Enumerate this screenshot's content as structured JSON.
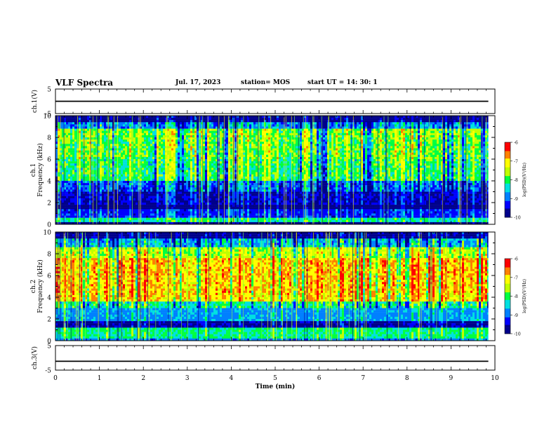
{
  "header": {
    "title": "VLF Spectra",
    "date": "Jul. 17, 2023",
    "station": "station= MOS",
    "start": "start UT =  14: 30: 1"
  },
  "colors": {
    "colormap": [
      "#00008b",
      "#0000ff",
      "#0080ff",
      "#00e0e0",
      "#00ff40",
      "#c0ff00",
      "#ffff00",
      "#ff8000",
      "#ff0000",
      "#ffffff"
    ],
    "trace": "#000000"
  },
  "chart_data": [
    {
      "type": "line",
      "panel": "ch1-waveform",
      "ylabel": "ch.1(V)",
      "ylim": [
        -5,
        5
      ],
      "yticks": [
        "5",
        "-5"
      ],
      "series": [
        {
          "values": [
            0,
            0
          ]
        }
      ],
      "x": [
        0,
        9.85
      ]
    },
    {
      "type": "heatmap",
      "panel": "ch1-spectrogram",
      "ylabel": "ch.1 Frequency (kHz)",
      "ylim": [
        0,
        10
      ],
      "yticks": [
        "0",
        "2",
        "4",
        "6",
        "8",
        "10"
      ],
      "xlim": [
        0,
        10
      ],
      "data_end_min": 9.85,
      "colorbar": {
        "label": "log(PSD)(V²/Hz)",
        "range": [
          -10,
          -6
        ],
        "ticks": [
          "-6",
          "-7",
          "-8",
          "-9",
          "-10"
        ]
      },
      "bands": [
        {
          "from": 0.0,
          "to": 0.3,
          "level": -10
        },
        {
          "from": 0.3,
          "to": 0.6,
          "level": -8.3
        },
        {
          "from": 0.6,
          "to": 1.4,
          "level": -9.3
        },
        {
          "from": 1.4,
          "to": 1.7,
          "level": -10
        },
        {
          "from": 1.7,
          "to": 3.0,
          "level": -9.6
        },
        {
          "from": 3.0,
          "to": 4.0,
          "level": -9.1
        },
        {
          "from": 4.0,
          "to": 6.0,
          "level": -8.1
        },
        {
          "from": 6.0,
          "to": 8.0,
          "level": -7.9
        },
        {
          "from": 8.0,
          "to": 8.9,
          "level": -7.8
        },
        {
          "from": 8.9,
          "to": 9.5,
          "level": -8.9
        },
        {
          "from": 9.5,
          "to": 10.0,
          "level": -10
        }
      ]
    },
    {
      "type": "heatmap",
      "panel": "ch2-spectrogram",
      "ylabel": "ch.2 Frequency (kHz)",
      "ylim": [
        0,
        10
      ],
      "yticks": [
        "0",
        "2",
        "4",
        "6",
        "8",
        "10"
      ],
      "xlim": [
        0,
        10
      ],
      "data_end_min": 9.85,
      "colorbar": {
        "label": "log(PSD)(V²/Hz)",
        "range": [
          -10,
          -6
        ],
        "ticks": [
          "-6",
          "-7",
          "-8",
          "-9",
          "-10"
        ]
      },
      "bands": [
        {
          "from": 0.0,
          "to": 0.3,
          "level": -8.9
        },
        {
          "from": 0.3,
          "to": 1.2,
          "level": -8.2
        },
        {
          "from": 1.2,
          "to": 1.8,
          "level": -9.7
        },
        {
          "from": 1.8,
          "to": 3.0,
          "level": -8.8
        },
        {
          "from": 3.0,
          "to": 3.6,
          "level": -8.2
        },
        {
          "from": 3.6,
          "to": 4.5,
          "level": -7.0
        },
        {
          "from": 4.5,
          "to": 7.6,
          "level": -6.9
        },
        {
          "from": 7.6,
          "to": 8.6,
          "level": -7.5
        },
        {
          "from": 8.6,
          "to": 9.4,
          "level": -8.6
        },
        {
          "from": 9.4,
          "to": 10.0,
          "level": -9.8
        }
      ]
    },
    {
      "type": "line",
      "panel": "ch3-waveform",
      "ylabel": "ch.3(V)",
      "ylim": [
        -5,
        5
      ],
      "yticks": [
        "5",
        "-5"
      ],
      "series": [
        {
          "values": [
            -1.4,
            -1.4
          ]
        }
      ],
      "x": [
        0,
        9.85
      ]
    }
  ],
  "xaxis": {
    "label": "Time (min)",
    "ticks": [
      "0",
      "1",
      "2",
      "3",
      "4",
      "5",
      "6",
      "7",
      "8",
      "9",
      "10"
    ],
    "xlim": [
      0,
      10
    ]
  }
}
